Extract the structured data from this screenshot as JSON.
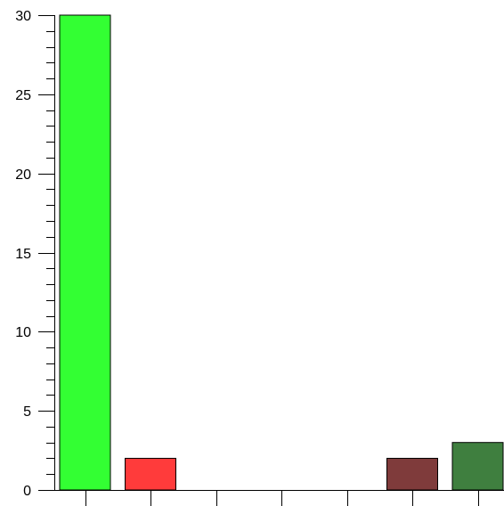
{
  "chart_data": {
    "type": "bar",
    "categories": [
      "",
      "",
      "",
      "",
      "",
      "",
      ""
    ],
    "values": [
      30,
      2,
      0,
      0,
      0,
      2,
      3
    ],
    "colors": [
      "#33ff33",
      "#ff3b3b",
      "#cccccc",
      "#cccccc",
      "#cccccc",
      "#7f3b3b",
      "#3f7f3f"
    ],
    "ylim": [
      0,
      30
    ],
    "yticks": [
      "0",
      "5",
      "10",
      "15",
      "20",
      "25",
      "30"
    ],
    "ytick_values": [
      0,
      5,
      10,
      15,
      20,
      25,
      30
    ],
    "minor_tick_step": 1,
    "title": "",
    "xlabel": "",
    "ylabel": "",
    "grid": false,
    "legend": "none"
  }
}
